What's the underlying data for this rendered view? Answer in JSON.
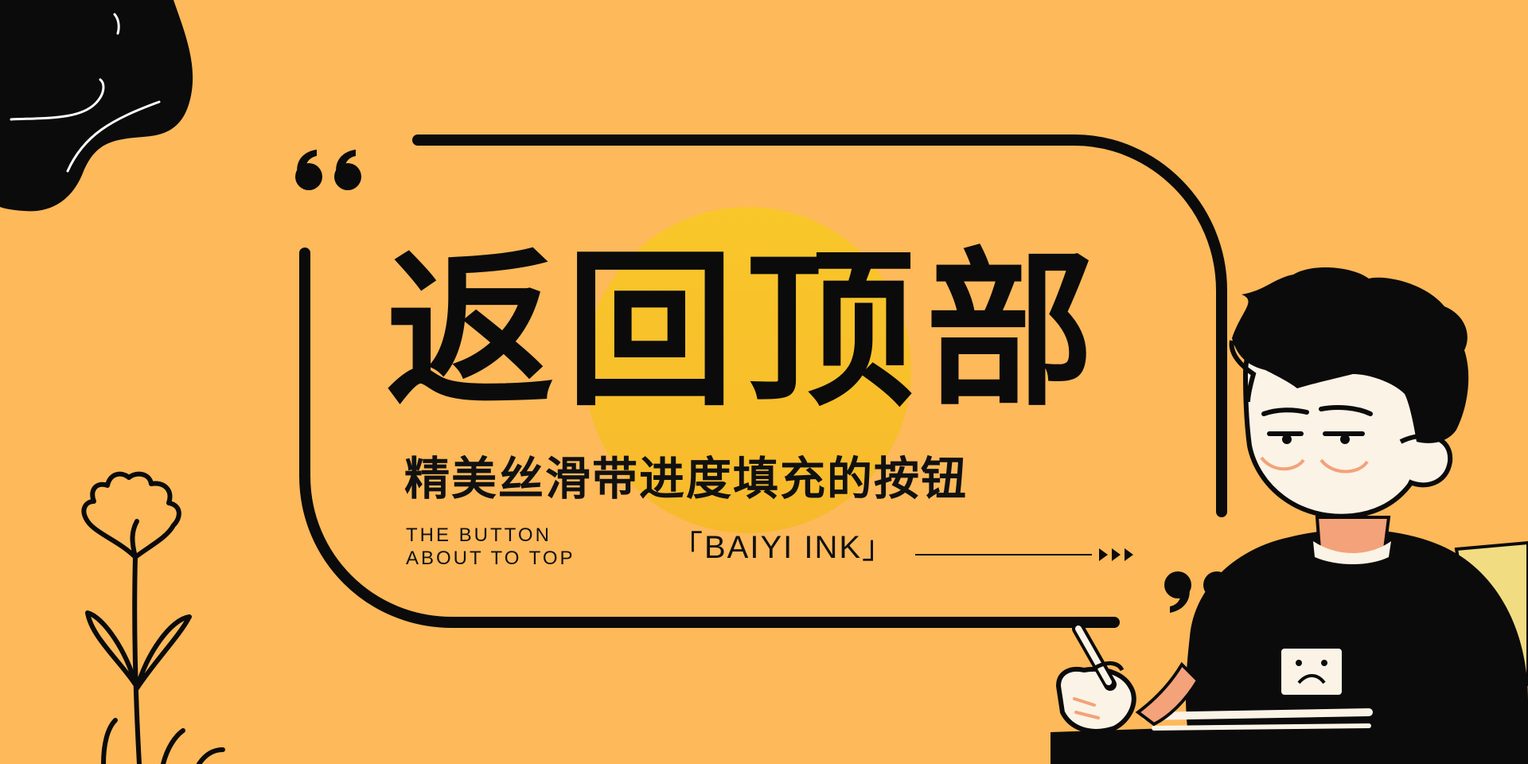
{
  "banner": {
    "title": "返回顶部",
    "subtitle": "精美丝滑带进度填充的按钮",
    "en_line_1": "THE BUTTON",
    "en_line_2": "ABOUT TO TOP",
    "brand": "「BAIYI  INK」",
    "arrow_glyphs": "▸▸▸"
  },
  "colors": {
    "background": "#fdb95a",
    "sun": "#f8c227",
    "ink": "#0b0b0b",
    "skin": "#fbf3e6",
    "blush": "#f3a27a",
    "chair": "#f2dc82"
  }
}
